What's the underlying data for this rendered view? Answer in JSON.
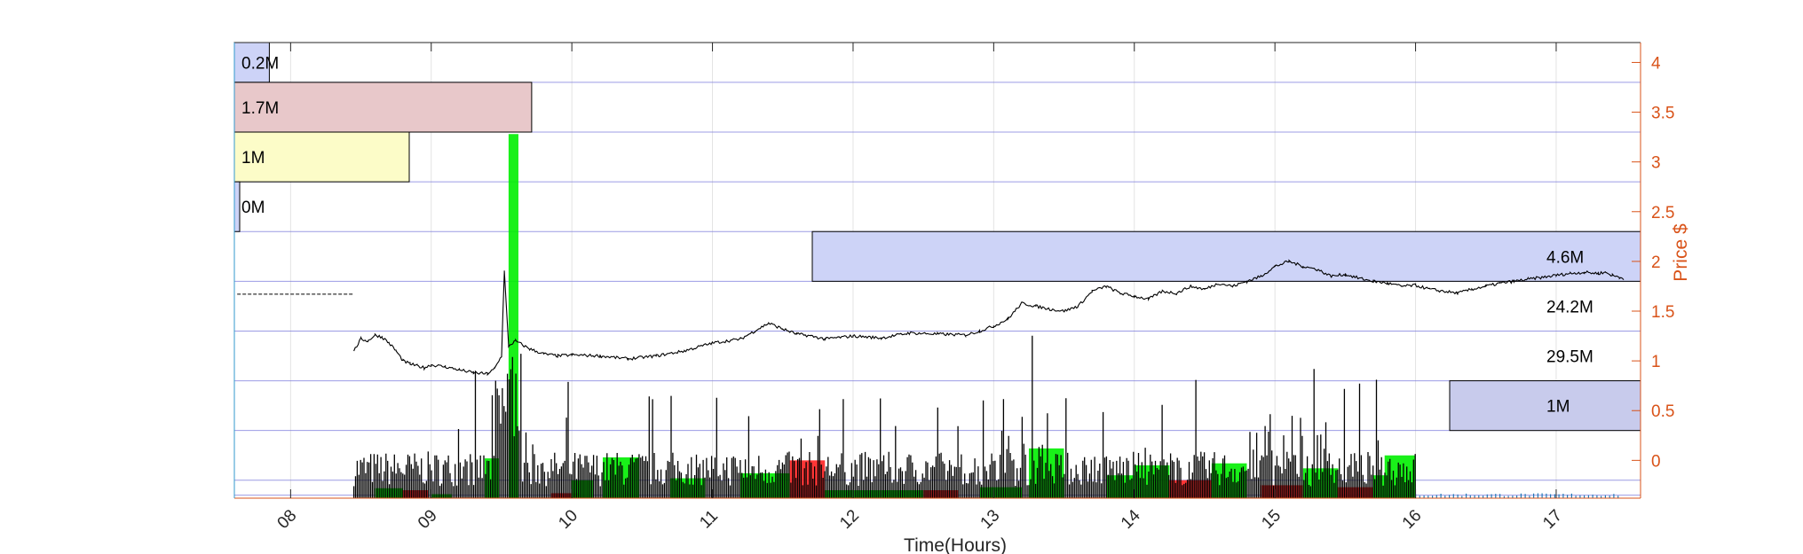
{
  "chart_data": {
    "type": "bar",
    "xlabel": "Time(Hours)",
    "ylabel_right": "Price $",
    "xlim": [
      7.6,
      17.6
    ],
    "ylim": [
      -0.38,
      4.2
    ],
    "x_ticks": [
      8,
      9,
      10,
      11,
      12,
      13,
      14,
      15,
      16,
      17
    ],
    "x_tick_labels": [
      "08",
      "09",
      "10",
      "11",
      "12",
      "13",
      "14",
      "15",
      "16",
      "17"
    ],
    "y_ticks": [
      0,
      0.5,
      1,
      1.5,
      2,
      2.5,
      3,
      3.5,
      4
    ],
    "y_tick_labels": [
      "0",
      "0.5",
      "1",
      "1.5",
      "2",
      "2.5",
      "3",
      "3.5",
      "4"
    ],
    "grid": true,
    "colors": {
      "price_axis": "#d95319",
      "up_volume": "#00ee00",
      "down_volume": "#ff2020",
      "price_line": "#000000",
      "profile_grid": "#7b7bdc",
      "after_hours": "#1f77b4"
    },
    "volume_profile_left": [
      {
        "price_low": 3.8,
        "price_high": 4.2,
        "volume": 0.2,
        "label": "0.2M",
        "color": "#cdd3f7"
      },
      {
        "price_low": 3.3,
        "price_high": 3.8,
        "volume": 1.7,
        "label": "1.7M",
        "color": "#e8c8ca"
      },
      {
        "price_low": 2.8,
        "price_high": 3.3,
        "volume": 1.0,
        "label": "1M",
        "color": "#fcfcc8"
      },
      {
        "price_low": 2.3,
        "price_high": 2.8,
        "volume": 0.02,
        "label": "0M",
        "color": "#cdd3f7"
      }
    ],
    "volume_profile_right": [
      {
        "price_low": 1.8,
        "price_high": 2.3,
        "volume": 4.6,
        "label": "4.6M",
        "color": "#cdd3f7"
      },
      {
        "price_low": 1.3,
        "price_high": 1.8,
        "volume": 24.2,
        "label": "24.2M",
        "color": "#cdd3f7"
      },
      {
        "price_low": 0.8,
        "price_high": 1.3,
        "volume": 29.5,
        "label": "29.5M",
        "color": "#cdd3f7"
      },
      {
        "price_low": 0.3,
        "price_high": 0.8,
        "volume": 1.0,
        "label": "1M",
        "color": "#c8cbec"
      }
    ],
    "premarket_price": {
      "x_start": 7.62,
      "x_end": 8.45,
      "price": 1.67
    },
    "price_series": {
      "x": [
        8.45,
        8.5,
        8.55,
        8.6,
        8.65,
        8.7,
        8.75,
        8.8,
        8.85,
        8.9,
        8.95,
        9.0,
        9.1,
        9.2,
        9.3,
        9.4,
        9.45,
        9.5,
        9.52,
        9.55,
        9.6,
        9.7,
        9.8,
        9.9,
        10.0,
        10.2,
        10.4,
        10.6,
        10.8,
        11.0,
        11.2,
        11.3,
        11.4,
        11.5,
        11.6,
        11.7,
        11.8,
        12.0,
        12.2,
        12.4,
        12.6,
        12.8,
        12.9,
        13.0,
        13.1,
        13.2,
        13.3,
        13.4,
        13.5,
        13.6,
        13.7,
        13.8,
        13.9,
        14.0,
        14.1,
        14.2,
        14.3,
        14.4,
        14.5,
        14.6,
        14.7,
        14.8,
        14.9,
        15.0,
        15.1,
        15.2,
        15.3,
        15.4,
        15.5,
        15.6,
        15.7,
        15.8,
        15.9,
        16.0,
        16.1,
        16.2,
        16.3,
        16.4,
        16.5,
        16.6,
        16.7,
        16.8,
        16.9,
        17.0,
        17.1,
        17.2,
        17.3,
        17.35,
        17.4,
        17.45,
        17.48
      ],
      "y": [
        1.1,
        1.22,
        1.2,
        1.26,
        1.24,
        1.18,
        1.1,
        1.0,
        0.97,
        0.95,
        0.93,
        0.96,
        0.94,
        0.91,
        0.88,
        0.87,
        0.92,
        1.05,
        1.9,
        1.15,
        1.2,
        1.12,
        1.07,
        1.05,
        1.06,
        1.05,
        1.02,
        1.05,
        1.1,
        1.18,
        1.22,
        1.3,
        1.38,
        1.32,
        1.27,
        1.25,
        1.22,
        1.25,
        1.23,
        1.28,
        1.27,
        1.26,
        1.3,
        1.35,
        1.42,
        1.58,
        1.55,
        1.52,
        1.5,
        1.55,
        1.7,
        1.75,
        1.68,
        1.65,
        1.62,
        1.7,
        1.68,
        1.75,
        1.72,
        1.78,
        1.75,
        1.8,
        1.85,
        1.95,
        2.0,
        1.95,
        1.92,
        1.85,
        1.87,
        1.83,
        1.8,
        1.78,
        1.75,
        1.76,
        1.72,
        1.7,
        1.68,
        1.72,
        1.75,
        1.78,
        1.8,
        1.82,
        1.84,
        1.86,
        1.88,
        1.89,
        1.88,
        1.89,
        1.86,
        1.84,
        1.83
      ]
    },
    "volume_bars": [
      {
        "x_start": 8.78,
        "x_end": 8.98,
        "direction": "down",
        "level": -0.3
      },
      {
        "x_start": 9.38,
        "x_end": 9.48,
        "direction": "up",
        "level": 0.02
      },
      {
        "x_start": 9.55,
        "x_end": 9.62,
        "direction": "up",
        "level": 3.28
      },
      {
        "x_start": 10.22,
        "x_end": 10.48,
        "direction": "up",
        "level": 0.03
      },
      {
        "x_start": 11.55,
        "x_end": 11.8,
        "direction": "down",
        "level": 0.0
      },
      {
        "x_start": 13.25,
        "x_end": 13.5,
        "direction": "up",
        "level": 0.12
      },
      {
        "x_start": 14.55,
        "x_end": 14.8,
        "direction": "up",
        "level": -0.03
      },
      {
        "x_start": 15.78,
        "x_end": 16.0,
        "direction": "up",
        "level": 0.05
      }
    ]
  }
}
